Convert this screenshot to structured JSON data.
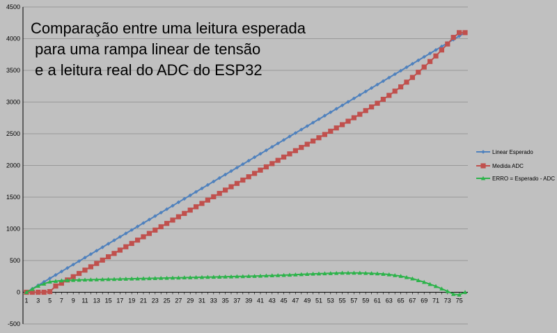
{
  "chart_data": {
    "type": "line",
    "title_lines": [
      "Comparação entre uma leitura esperada",
      " para uma rampa linear de tensão",
      " e a leitura real do ADC do ESP32"
    ],
    "xlabel": "",
    "ylabel": "",
    "ylim": [
      -500,
      4500
    ],
    "y_ticks": [
      -500,
      0,
      500,
      1000,
      1500,
      2000,
      2500,
      3000,
      3500,
      4000,
      4500
    ],
    "x_range": [
      1,
      76
    ],
    "x_tick_labels": [
      1,
      3,
      5,
      7,
      9,
      11,
      13,
      15,
      17,
      19,
      21,
      23,
      25,
      27,
      29,
      31,
      33,
      35,
      37,
      39,
      41,
      43,
      45,
      47,
      49,
      51,
      53,
      55,
      57,
      59,
      61,
      63,
      65,
      67,
      69,
      71,
      73,
      75
    ],
    "grid": "horizontal",
    "legend_position": "right",
    "series": [
      {
        "name": "Linear Esperado",
        "color": "#4F81BD",
        "marker": "diamond",
        "x": [
          1,
          76
        ],
        "values": [
          0,
          4095
        ],
        "linear": true
      },
      {
        "name": "Medida ADC",
        "color": "#C0504D",
        "marker": "square",
        "x": [
          1,
          2,
          3,
          4,
          5,
          74,
          75,
          76
        ],
        "values": [
          0,
          0,
          0,
          0,
          10,
          4020,
          4095,
          4095
        ],
        "linear": false
      },
      {
        "name": "ERRO = Esperado - ADC",
        "color": "#2CB34A",
        "marker": "triangle",
        "x": [
          1,
          3,
          5,
          7,
          10,
          15,
          20,
          25,
          30,
          35,
          40,
          45,
          50,
          55,
          58,
          61,
          63,
          65,
          67,
          69,
          71,
          73,
          74,
          75,
          76
        ],
        "values": [
          0,
          100,
          165,
          185,
          195,
          205,
          215,
          225,
          235,
          245,
          255,
          270,
          290,
          305,
          305,
          295,
          280,
          255,
          215,
          160,
          95,
          15,
          -30,
          -40,
          0
        ],
        "linear": false
      }
    ]
  }
}
